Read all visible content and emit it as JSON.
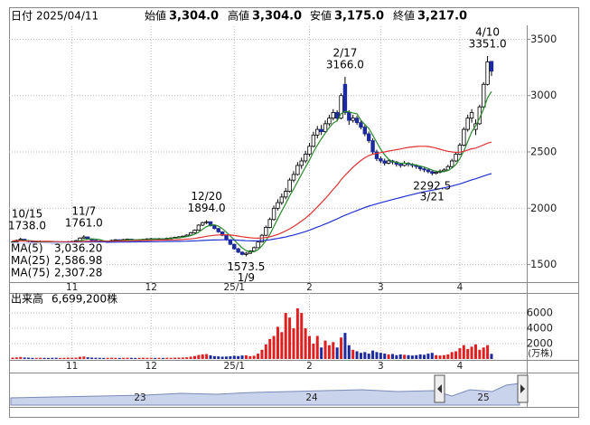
{
  "header": {
    "date_label": "日付",
    "date": "2025/04/11",
    "fields": [
      {
        "label": "始値",
        "value": "3,304.0",
        "color": "#000000"
      },
      {
        "label": "高値",
        "value": "3,304.0",
        "color": "#e00000"
      },
      {
        "label": "安値",
        "value": "3,175.0",
        "color": "#008000"
      },
      {
        "label": "終値",
        "value": "3,217.0",
        "color": "#000000"
      }
    ]
  },
  "chart_data": {
    "type": "candlestick",
    "categories": [
      null,
      null,
      null,
      null,
      null,
      null,
      null,
      null,
      null,
      null,
      null,
      null,
      null,
      null,
      null,
      "11",
      null,
      null,
      null,
      null,
      null,
      null,
      null,
      null,
      null,
      null,
      null,
      null,
      null,
      null,
      null,
      null,
      null,
      null,
      null,
      "12",
      null,
      null,
      null,
      null,
      null,
      null,
      null,
      null,
      null,
      null,
      null,
      null,
      null,
      null,
      null,
      null,
      null,
      null,
      null,
      null,
      "25/1",
      null,
      null,
      null,
      null,
      null,
      null,
      null,
      null,
      null,
      null,
      null,
      null,
      null,
      null,
      null,
      null,
      null,
      null,
      "2",
      null,
      null,
      null,
      null,
      null,
      null,
      null,
      null,
      null,
      null,
      null,
      null,
      null,
      null,
      null,
      null,
      null,
      "3",
      null,
      null,
      null,
      null,
      null,
      null,
      null,
      null,
      null,
      null,
      null,
      null,
      null,
      null,
      null,
      null,
      null,
      null,
      null,
      "4",
      null,
      null,
      null,
      null,
      null,
      null,
      null,
      null
    ],
    "ohlc": [
      [
        1695,
        1712,
        1688,
        1700
      ],
      [
        1700,
        1722,
        1696,
        1715
      ],
      [
        1716,
        1738,
        1710,
        1725
      ],
      [
        1725,
        1730,
        1705,
        1712
      ],
      [
        1712,
        1718,
        1698,
        1705
      ],
      [
        1704,
        1710,
        1688,
        1695
      ],
      [
        1695,
        1705,
        1690,
        1698
      ],
      [
        1698,
        1714,
        1694,
        1706
      ],
      [
        1706,
        1710,
        1694,
        1700
      ],
      [
        1700,
        1704,
        1685,
        1690
      ],
      [
        1690,
        1695,
        1680,
        1686
      ],
      [
        1686,
        1690,
        1672,
        1680
      ],
      [
        1680,
        1696,
        1676,
        1690
      ],
      [
        1690,
        1702,
        1684,
        1696
      ],
      [
        1696,
        1710,
        1690,
        1702
      ],
      [
        1702,
        1712,
        1696,
        1705
      ],
      [
        1705,
        1720,
        1700,
        1712
      ],
      [
        1712,
        1742,
        1708,
        1735
      ],
      [
        1735,
        1761,
        1730,
        1745
      ],
      [
        1745,
        1750,
        1722,
        1728
      ],
      [
        1728,
        1732,
        1710,
        1716
      ],
      [
        1716,
        1720,
        1704,
        1710
      ],
      [
        1710,
        1714,
        1698,
        1705
      ],
      [
        1705,
        1710,
        1694,
        1700
      ],
      [
        1700,
        1714,
        1696,
        1708
      ],
      [
        1708,
        1720,
        1704,
        1714
      ],
      [
        1714,
        1726,
        1708,
        1720
      ],
      [
        1720,
        1724,
        1710,
        1718
      ],
      [
        1718,
        1728,
        1714,
        1722
      ],
      [
        1722,
        1732,
        1716,
        1726
      ],
      [
        1726,
        1730,
        1714,
        1720
      ],
      [
        1720,
        1724,
        1710,
        1716
      ],
      [
        1716,
        1726,
        1712,
        1720
      ],
      [
        1720,
        1730,
        1716,
        1724
      ],
      [
        1724,
        1734,
        1720,
        1728
      ],
      [
        1728,
        1737,
        1722,
        1730
      ],
      [
        1730,
        1734,
        1720,
        1726
      ],
      [
        1726,
        1736,
        1722,
        1730
      ],
      [
        1730,
        1734,
        1722,
        1728
      ],
      [
        1728,
        1740,
        1724,
        1734
      ],
      [
        1734,
        1742,
        1728,
        1736
      ],
      [
        1736,
        1748,
        1732,
        1742
      ],
      [
        1742,
        1752,
        1736,
        1746
      ],
      [
        1746,
        1758,
        1740,
        1752
      ],
      [
        1752,
        1768,
        1748,
        1762
      ],
      [
        1762,
        1790,
        1758,
        1782
      ],
      [
        1782,
        1812,
        1776,
        1805
      ],
      [
        1805,
        1858,
        1800,
        1850
      ],
      [
        1850,
        1880,
        1842,
        1872
      ],
      [
        1872,
        1894,
        1860,
        1880
      ],
      [
        1880,
        1884,
        1838,
        1845
      ],
      [
        1845,
        1850,
        1812,
        1820
      ],
      [
        1820,
        1826,
        1782,
        1790
      ],
      [
        1790,
        1796,
        1752,
        1760
      ],
      [
        1760,
        1766,
        1712,
        1720
      ],
      [
        1720,
        1726,
        1672,
        1680
      ],
      [
        1680,
        1684,
        1632,
        1640
      ],
      [
        1640,
        1648,
        1602,
        1610
      ],
      [
        1610,
        1618,
        1582,
        1590
      ],
      [
        1590,
        1612,
        1573.5,
        1600
      ],
      [
        1600,
        1628,
        1594,
        1620
      ],
      [
        1620,
        1660,
        1614,
        1650
      ],
      [
        1650,
        1712,
        1646,
        1700
      ],
      [
        1700,
        1772,
        1696,
        1760
      ],
      [
        1760,
        1846,
        1752,
        1830
      ],
      [
        1830,
        1918,
        1822,
        1900
      ],
      [
        1900,
        2024,
        1890,
        2000
      ],
      [
        2000,
        2080,
        1980,
        2050
      ],
      [
        2050,
        2130,
        2030,
        2100
      ],
      [
        2100,
        2180,
        2080,
        2150
      ],
      [
        2150,
        2270,
        2140,
        2250
      ],
      [
        2250,
        2330,
        2230,
        2300
      ],
      [
        2300,
        2410,
        2290,
        2380
      ],
      [
        2380,
        2450,
        2350,
        2420
      ],
      [
        2420,
        2510,
        2400,
        2480
      ],
      [
        2480,
        2580,
        2460,
        2550
      ],
      [
        2550,
        2680,
        2540,
        2650
      ],
      [
        2650,
        2730,
        2620,
        2700
      ],
      [
        2700,
        2740,
        2650,
        2680
      ],
      [
        2680,
        2780,
        2670,
        2750
      ],
      [
        2750,
        2830,
        2730,
        2800
      ],
      [
        2800,
        2880,
        2780,
        2850
      ],
      [
        2850,
        2870,
        2770,
        2800
      ],
      [
        2800,
        3020,
        2790,
        3000
      ],
      [
        3100,
        3166,
        2830,
        2850
      ],
      [
        2850,
        2870,
        2740,
        2780
      ],
      [
        2780,
        2830,
        2760,
        2800
      ],
      [
        2800,
        2820,
        2740,
        2760
      ],
      [
        2760,
        2780,
        2700,
        2720
      ],
      [
        2720,
        2740,
        2640,
        2660
      ],
      [
        2660,
        2680,
        2580,
        2600
      ],
      [
        2600,
        2620,
        2480,
        2500
      ],
      [
        2500,
        2520,
        2420,
        2440
      ],
      [
        2440,
        2460,
        2400,
        2420
      ],
      [
        2420,
        2440,
        2380,
        2400
      ],
      [
        2400,
        2440,
        2390,
        2420
      ],
      [
        2420,
        2430,
        2390,
        2410
      ],
      [
        2410,
        2420,
        2370,
        2390
      ],
      [
        2390,
        2400,
        2360,
        2380
      ],
      [
        2380,
        2420,
        2370,
        2400
      ],
      [
        2400,
        2410,
        2370,
        2390
      ],
      [
        2390,
        2400,
        2360,
        2380
      ],
      [
        2380,
        2390,
        2350,
        2370
      ],
      [
        2370,
        2380,
        2330,
        2350
      ],
      [
        2350,
        2360,
        2320,
        2340
      ],
      [
        2340,
        2350,
        2310,
        2325
      ],
      [
        2325,
        2335,
        2292.5,
        2310
      ],
      [
        2310,
        2335,
        2300,
        2320
      ],
      [
        2320,
        2345,
        2310,
        2330
      ],
      [
        2330,
        2355,
        2320,
        2340
      ],
      [
        2340,
        2385,
        2330,
        2370
      ],
      [
        2370,
        2440,
        2360,
        2420
      ],
      [
        2420,
        2500,
        2410,
        2480
      ],
      [
        2480,
        2580,
        2470,
        2560
      ],
      [
        2560,
        2720,
        2550,
        2700
      ],
      [
        2700,
        2830,
        2680,
        2800
      ],
      [
        2800,
        2880,
        2760,
        2850
      ],
      [
        2700,
        2790,
        2650,
        2750
      ],
      [
        2750,
        2920,
        2740,
        2900
      ],
      [
        2900,
        3120,
        2880,
        3100
      ],
      [
        3100,
        3351,
        3090,
        3300
      ],
      [
        3304,
        3304,
        3175,
        3217
      ]
    ],
    "ylim": [
      1344,
      3616
    ],
    "yticks": [
      1500,
      2000,
      2500,
      3000,
      3500
    ],
    "grid": true,
    "up_color": "#ffffff",
    "down_color": "#1c2a9e",
    "annotations": [
      {
        "date": "10/15",
        "value": 1738,
        "label": "1738.0"
      },
      {
        "date": "11/7",
        "value": 1761,
        "label": "1761.0"
      },
      {
        "date": "12/20",
        "value": 1894,
        "label": "1894.0"
      },
      {
        "date": "1/9",
        "value": 1573.5,
        "label": "1573.5"
      },
      {
        "date": "2/17",
        "value": 3166,
        "label": "3166.0"
      },
      {
        "date": "3/21",
        "value": 2292.5,
        "label": "2292.5"
      },
      {
        "date": "4/10",
        "value": 3351,
        "label": "3351.0"
      }
    ],
    "series": [
      {
        "name": "MA(5)",
        "color": "#2b8a2b",
        "value_label": "3,036.20",
        "values": [
          1705,
          1708,
          1712,
          1714,
          1711,
          1710,
          1707,
          1703,
          1701,
          1698,
          1696,
          1692,
          1689,
          1688,
          1691,
          1695,
          1701,
          1709,
          1720,
          1725,
          1727,
          1727,
          1721,
          1712,
          1708,
          1707,
          1709,
          1712,
          1716,
          1720,
          1721,
          1720,
          1721,
          1721,
          1722,
          1726,
          1726,
          1728,
          1728,
          1730,
          1731,
          1734,
          1737,
          1742,
          1748,
          1757,
          1769,
          1788,
          1814,
          1838,
          1850,
          1853,
          1841,
          1819,
          1787,
          1754,
          1718,
          1680,
          1648,
          1624,
          1612,
          1614,
          1632,
          1666,
          1712,
          1768,
          1838,
          1908,
          1976,
          2040,
          2110,
          2170,
          2236,
          2300,
          2366,
          2426,
          2500,
          2560,
          2616,
          2666,
          2716,
          2756,
          2776,
          2840,
          2860,
          2856,
          2846,
          2838,
          2782,
          2744,
          2708,
          2648,
          2584,
          2524,
          2474,
          2434,
          2414,
          2408,
          2400,
          2400,
          2398,
          2388,
          2384,
          2374,
          2366,
          2353,
          2339,
          2329,
          2325,
          2325,
          2335,
          2356,
          2388,
          2440,
          2506,
          2592,
          2678,
          2732,
          2800,
          2880,
          2980,
          3036.2
        ]
      },
      {
        "name": "MA(25)",
        "color": "#e03030",
        "value_label": "2,586.98",
        "values": [
          1710,
          1710,
          1709,
          1709,
          1708,
          1708,
          1707,
          1707,
          1706,
          1706,
          1705,
          1704,
          1704,
          1703,
          1703,
          1703,
          1703,
          1704,
          1705,
          1706,
          1706,
          1707,
          1707,
          1707,
          1707,
          1708,
          1708,
          1709,
          1710,
          1711,
          1712,
          1713,
          1713,
          1714,
          1714,
          1715,
          1716,
          1717,
          1717,
          1718,
          1719,
          1720,
          1721,
          1723,
          1725,
          1728,
          1732,
          1738,
          1744,
          1751,
          1756,
          1760,
          1763,
          1765,
          1764,
          1762,
          1758,
          1753,
          1747,
          1742,
          1738,
          1735,
          1734,
          1736,
          1740,
          1746,
          1756,
          1768,
          1782,
          1798,
          1818,
          1838,
          1862,
          1886,
          1912,
          1942,
          1976,
          2012,
          2048,
          2086,
          2126,
          2168,
          2206,
          2254,
          2292,
          2328,
          2364,
          2396,
          2424,
          2448,
          2468,
          2480,
          2488,
          2494,
          2500,
          2508,
          2514,
          2520,
          2526,
          2534,
          2540,
          2544,
          2548,
          2550,
          2550,
          2548,
          2542,
          2534,
          2524,
          2514,
          2506,
          2500,
          2496,
          2498,
          2506,
          2516,
          2528,
          2534,
          2548,
          2562,
          2578,
          2586.98
        ]
      },
      {
        "name": "MA(75)",
        "color": "#2030d0",
        "value_label": "2,307.28",
        "values": [
          1690,
          1690,
          1691,
          1691,
          1691,
          1692,
          1692,
          1692,
          1693,
          1693,
          1693,
          1694,
          1694,
          1694,
          1695,
          1695,
          1695,
          1696,
          1696,
          1697,
          1697,
          1697,
          1698,
          1698,
          1698,
          1699,
          1699,
          1700,
          1700,
          1700,
          1701,
          1701,
          1702,
          1702,
          1702,
          1703,
          1703,
          1704,
          1704,
          1705,
          1705,
          1706,
          1706,
          1707,
          1708,
          1709,
          1710,
          1712,
          1714,
          1716,
          1717,
          1718,
          1719,
          1720,
          1720,
          1719,
          1718,
          1716,
          1714,
          1712,
          1711,
          1710,
          1711,
          1713,
          1716,
          1720,
          1726,
          1732,
          1738,
          1745,
          1754,
          1762,
          1772,
          1782,
          1793,
          1805,
          1819,
          1833,
          1846,
          1860,
          1875,
          1891,
          1905,
          1923,
          1938,
          1952,
          1966,
          1980,
          1993,
          2006,
          2018,
          2029,
          2039,
          2049,
          2058,
          2068,
          2077,
          2086,
          2095,
          2104,
          2113,
          2121,
          2130,
          2138,
          2146,
          2153,
          2160,
          2167,
          2174,
          2181,
          2189,
          2197,
          2206,
          2216,
          2228,
          2240,
          2252,
          2262,
          2274,
          2286,
          2298,
          2307.28
        ]
      }
    ],
    "volume": {
      "label": "出来高",
      "value_label": "6,699,200株",
      "unit": "(万株)",
      "ylim": [
        0,
        8600
      ],
      "yticks": [
        2000,
        4000,
        6000
      ],
      "up_color": "#e02020",
      "down_color": "#1c2a9e",
      "values": [
        180,
        200,
        260,
        190,
        170,
        150,
        140,
        160,
        150,
        140,
        150,
        160,
        140,
        150,
        170,
        160,
        170,
        280,
        320,
        220,
        180,
        160,
        150,
        140,
        150,
        160,
        150,
        140,
        150,
        160,
        150,
        140,
        150,
        160,
        150,
        150,
        140,
        150,
        140,
        160,
        150,
        170,
        180,
        190,
        220,
        300,
        380,
        520,
        600,
        640,
        480,
        380,
        340,
        300,
        320,
        360,
        420,
        380,
        450,
        480,
        360,
        420,
        700,
        1200,
        1900,
        2600,
        3000,
        4200,
        3500,
        6000,
        5400,
        4000,
        6600,
        6000,
        4000,
        3000,
        2000,
        3000,
        1500,
        2400,
        1800,
        2200,
        1500,
        2800,
        3400,
        1800,
        1200,
        1000,
        800,
        900,
        700,
        1100,
        900,
        800,
        700,
        600,
        650,
        500,
        600,
        550,
        500,
        450,
        500,
        600,
        550,
        700,
        800,
        500,
        450,
        500,
        600,
        900,
        1000,
        1400,
        1800,
        1300,
        1600,
        1900,
        1200,
        1500,
        1800,
        669.92
      ]
    }
  },
  "navigator": {
    "labels": [
      "23",
      "24",
      "25"
    ]
  }
}
